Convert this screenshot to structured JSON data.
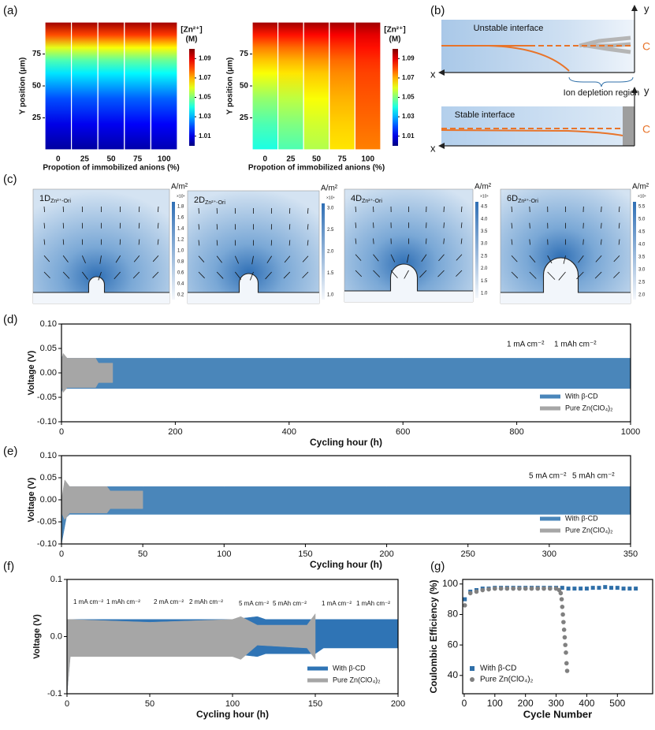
{
  "panel_labels": [
    "(a)",
    "(b)",
    "(c)",
    "(d)",
    "(e)",
    "(f)",
    "(g)"
  ],
  "panel_b": {
    "top_title": "Unstable interface",
    "bottom_title": "Stable interface",
    "region": "Ion depletion region",
    "axis_x": "x",
    "axis_y": "y",
    "conc": "C"
  },
  "panel_c": [
    {
      "label": "1D",
      "sub": "Zn²⁺-Ori",
      "unit": "A/m²",
      "scale": "×10⁴",
      "ticks": [
        "1.8",
        "1.6",
        "1.4",
        "1.2",
        "1.0",
        "0.8",
        "0.6",
        "0.4",
        "0.2"
      ]
    },
    {
      "label": "2D",
      "sub": "Zn²⁺-Ori",
      "unit": "A/m²",
      "scale": "×10⁴",
      "ticks": [
        "3.0",
        "2.5",
        "2.0",
        "1.5",
        "1.0"
      ]
    },
    {
      "label": "4D",
      "sub": "Zn²⁺-Ori",
      "unit": "A/m²",
      "scale": "×10⁴",
      "ticks": [
        "4.5",
        "4.0",
        "3.5",
        "3.0",
        "2.5",
        "2.0",
        "1.5",
        "1.0"
      ]
    },
    {
      "label": "6D",
      "sub": "Zn²⁺-Ori",
      "unit": "A/m²",
      "scale": "×10⁴",
      "ticks": [
        "5.5",
        "5.0",
        "4.5",
        "4.0",
        "3.5",
        "3.0",
        "2.5",
        "2.0"
      ]
    }
  ],
  "chart_data": [
    {
      "type": "heatmap",
      "xlabel": "Propotion of immobilized anions (%)",
      "ylabel": "Y position (μm)",
      "categories": [
        "0",
        "25",
        "50",
        "75",
        "100"
      ],
      "y": [
        0,
        20,
        40,
        60,
        70,
        80,
        90,
        100
      ],
      "values": [
        [
          1.003,
          1.01,
          1.02,
          1.035,
          1.045,
          1.06,
          1.08,
          1.097
        ],
        [
          1.003,
          1.011,
          1.021,
          1.036,
          1.046,
          1.061,
          1.081,
          1.097
        ],
        [
          1.004,
          1.011,
          1.021,
          1.036,
          1.047,
          1.062,
          1.081,
          1.097
        ],
        [
          1.004,
          1.012,
          1.022,
          1.037,
          1.047,
          1.062,
          1.082,
          1.097
        ],
        [
          1.005,
          1.012,
          1.022,
          1.038,
          1.048,
          1.063,
          1.082,
          1.097
        ]
      ],
      "ylim": [
        0,
        100
      ],
      "yticks": [
        25,
        50,
        75
      ],
      "colormap": "jet",
      "clim": [
        1.0,
        1.1
      ],
      "cticks": [
        1.01,
        1.03,
        1.05,
        1.07,
        1.09
      ],
      "colorbar_label": "[Zn²⁺]",
      "colorbar_unit": "(M)"
    },
    {
      "type": "heatmap",
      "xlabel": "Propotion of immobilized anions (%)",
      "ylabel": "Y position (μm)",
      "categories": [
        "0",
        "25",
        "50",
        "75",
        "100"
      ],
      "y": [
        0,
        20,
        40,
        60,
        70,
        80,
        90,
        100
      ],
      "values": [
        [
          1.04,
          1.045,
          1.052,
          1.062,
          1.068,
          1.075,
          1.085,
          1.097
        ],
        [
          1.045,
          1.05,
          1.056,
          1.065,
          1.07,
          1.077,
          1.086,
          1.097
        ],
        [
          1.055,
          1.058,
          1.062,
          1.068,
          1.073,
          1.079,
          1.087,
          1.097
        ],
        [
          1.065,
          1.067,
          1.07,
          1.074,
          1.077,
          1.082,
          1.088,
          1.097
        ],
        [
          1.075,
          1.077,
          1.079,
          1.081,
          1.083,
          1.086,
          1.09,
          1.097
        ]
      ],
      "ylim": [
        0,
        100
      ],
      "yticks": [
        25,
        50,
        75
      ],
      "colormap": "jet",
      "clim": [
        1.0,
        1.1
      ],
      "cticks": [
        1.01,
        1.03,
        1.05,
        1.07,
        1.09
      ],
      "colorbar_label": "[Zn²⁺]",
      "colorbar_unit": "(M)"
    },
    {
      "type": "band",
      "xlabel": "Cycling hour (h)",
      "ylabel": "Voltage (V)",
      "annotations": [
        "1 mA cm⁻²",
        "1 mAh cm⁻²"
      ],
      "xlim": [
        0,
        1000
      ],
      "xticks": [
        0,
        200,
        400,
        600,
        800,
        1000
      ],
      "ylim": [
        -0.1,
        0.1
      ],
      "yticks": [
        {
          "value": -0.1,
          "label": "-0.10"
        },
        -0.05,
        {
          "value": 0,
          "label": "0.00"
        },
        0.05,
        {
          "value": 0.1,
          "label": "0.10"
        }
      ],
      "legend": "lower right",
      "series": [
        {
          "name": "With β-CD",
          "color": "#4a86ba",
          "x": [
            0,
            2,
            10,
            50,
            90,
            200,
            400,
            600,
            800,
            1000
          ],
          "values": [
            0.035,
            0.03,
            0.03,
            0.03,
            0.03,
            0.03,
            0.03,
            0.03,
            0.03,
            0.03
          ],
          "lower": [
            -0.04,
            -0.033,
            -0.032,
            -0.032,
            -0.032,
            -0.032,
            -0.032,
            -0.032,
            -0.032,
            -0.032
          ]
        },
        {
          "name": "Pure Zn(ClO₄)₂",
          "color": "#a6a6a6",
          "x": [
            0,
            3,
            10,
            30,
            60,
            65,
            90
          ],
          "values": [
            0.025,
            0.04,
            0.03,
            0.03,
            0.03,
            0.02,
            0.02
          ],
          "lower": [
            -0.025,
            -0.04,
            -0.03,
            -0.03,
            -0.03,
            -0.02,
            -0.02
          ]
        }
      ]
    },
    {
      "type": "band",
      "xlabel": "Cycling hour (h)",
      "ylabel": "Voltage (V)",
      "annotations": [
        "5 mA cm⁻²",
        "5 mAh cm⁻²"
      ],
      "xlim": [
        0,
        350
      ],
      "xticks": [
        0,
        50,
        100,
        150,
        200,
        250,
        300,
        350
      ],
      "ylim": [
        -0.1,
        0.1
      ],
      "yticks": [
        {
          "value": -0.1,
          "label": "-0.10"
        },
        -0.05,
        {
          "value": 0,
          "label": "0.00"
        },
        0.05,
        {
          "value": 0.1,
          "label": "0.10"
        }
      ],
      "legend": "lower right",
      "series": [
        {
          "name": "With β-CD",
          "color": "#4a86ba",
          "x": [
            0,
            3,
            5,
            20,
            50,
            100,
            200,
            350
          ],
          "values": [
            0,
            0.03,
            0.03,
            0.03,
            0.03,
            0.03,
            0.03,
            0.03
          ],
          "lower": [
            -0.1,
            -0.04,
            -0.033,
            -0.033,
            -0.033,
            -0.033,
            -0.033,
            -0.033
          ]
        },
        {
          "name": "Pure Zn(ClO₄)₂",
          "color": "#a6a6a6",
          "x": [
            0,
            2,
            5,
            20,
            28,
            30,
            45,
            50
          ],
          "values": [
            0,
            0.045,
            0.03,
            0.03,
            0.03,
            0.02,
            0.02,
            0.02
          ],
          "lower": [
            -0.03,
            -0.045,
            -0.03,
            -0.03,
            -0.03,
            -0.02,
            -0.02,
            -0.02
          ]
        }
      ]
    },
    {
      "type": "band",
      "xlabel": "Cycling hour (h)",
      "ylabel": "Voltage (V)",
      "annotations": [
        "1 mA cm⁻²",
        "1 mAh cm⁻²",
        "2 mA cm⁻²",
        "2 mAh cm⁻²",
        "5 mA cm⁻²",
        "5 mAh cm⁻²",
        "1 mA cm⁻²",
        "1 mAh cm⁻²"
      ],
      "xlim": [
        0,
        200
      ],
      "xticks": [
        0,
        50,
        100,
        150,
        200
      ],
      "ylim": [
        -0.1,
        0.1
      ],
      "yticks": [
        -0.1,
        {
          "value": 0,
          "label": "0.0"
        },
        0.1
      ],
      "legend": "lower right",
      "series": [
        {
          "name": "With β-CD",
          "color": "#2f74b5",
          "x": [
            0,
            2,
            50,
            100,
            115,
            120,
            150,
            155,
            200
          ],
          "values": [
            0.03,
            0.03,
            0.03,
            0.03,
            0.035,
            0.03,
            0.03,
            0.03,
            0.03
          ],
          "lower": [
            -0.1,
            -0.03,
            -0.03,
            -0.03,
            -0.035,
            -0.03,
            -0.03,
            -0.02,
            -0.02
          ]
        },
        {
          "name": "Pure Zn(ClO₄)₂",
          "color": "#a6a6a6",
          "x": [
            0,
            2,
            50,
            100,
            105,
            115,
            145,
            150
          ],
          "values": [
            0.03,
            0.03,
            0.025,
            0.03,
            0.035,
            0.02,
            0.02,
            0.04
          ],
          "lower": [
            -0.1,
            -0.035,
            -0.035,
            -0.035,
            -0.04,
            -0.015,
            -0.02,
            -0.04
          ]
        }
      ]
    },
    {
      "type": "scatter",
      "xlabel": "Cycle Number",
      "ylabel": "Coulombic Efficiency (%)",
      "xlim": [
        -5,
        615
      ],
      "xticks": [
        0,
        100,
        200,
        300,
        400,
        500
      ],
      "ylim": [
        28,
        103
      ],
      "yticks": [
        40,
        60,
        80,
        100
      ],
      "legend": "lower left",
      "series": [
        {
          "name": "With β-CD",
          "color": "#2f6fa8",
          "marker": "square",
          "x": [
            2,
            20,
            40,
            60,
            80,
            100,
            120,
            140,
            160,
            180,
            200,
            220,
            240,
            260,
            280,
            300,
            320,
            340,
            360,
            380,
            400,
            420,
            440,
            460,
            480,
            500,
            520,
            540,
            560
          ],
          "values": [
            90,
            95,
            96,
            97,
            97,
            97.5,
            97.5,
            97.5,
            97.5,
            97.5,
            97.5,
            97.5,
            97.5,
            97.5,
            97.5,
            97.5,
            97.5,
            97,
            97,
            97,
            97,
            97.5,
            97.5,
            98,
            97.5,
            97.5,
            97,
            97,
            97
          ]
        },
        {
          "name": "Pure Zn(ClO₄)₂",
          "color": "#808080",
          "marker": "circle",
          "x": [
            2,
            20,
            40,
            60,
            80,
            100,
            120,
            140,
            160,
            180,
            200,
            220,
            240,
            260,
            280,
            300,
            310,
            315,
            318,
            320,
            322,
            324,
            326,
            328,
            330,
            332,
            334,
            336
          ],
          "values": [
            86,
            94,
            95,
            96,
            96.5,
            97,
            97,
            97,
            97,
            97,
            97,
            97,
            97,
            97,
            97,
            97,
            96,
            94,
            90,
            85,
            80,
            75,
            70,
            65,
            60,
            55,
            48,
            43
          ]
        }
      ]
    }
  ]
}
